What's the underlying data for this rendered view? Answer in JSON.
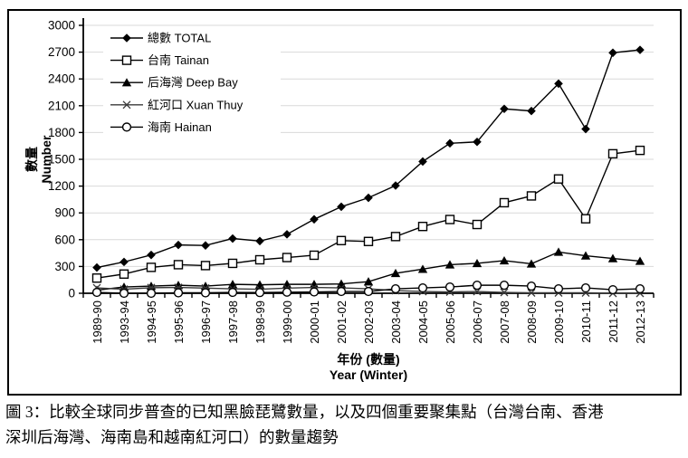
{
  "figure": {
    "caption_line1": "圖 3：比較全球同步普查的已知黑臉琵鷺數量，以及四個重要聚集點（台灣台南、香港",
    "caption_line2": "深圳后海灣、海南島和越南紅河口）的數量趨勢"
  },
  "chart_data": {
    "type": "line",
    "title": "",
    "xlabel_line1": "年份 (數量)",
    "xlabel_line2": "Year (Winter)",
    "ylabel_line1": "數量",
    "ylabel_line2": "Number",
    "ylim": [
      0,
      3000
    ],
    "ytick_step": 300,
    "grid": "horizontal-light-gray",
    "legend_position": "top-left-inside",
    "categories": [
      "1989-90",
      "1993-94",
      "1994-95",
      "1995-96",
      "1996-97",
      "1997-98",
      "1998-99",
      "1999-00",
      "2000-01",
      "2001-02",
      "2002-03",
      "2003-04",
      "2004-05",
      "2005-06",
      "2006-07",
      "2007-08",
      "2008-09",
      "2009-10",
      "2010-11",
      "2011-12",
      "2012-13"
    ],
    "series": [
      {
        "key": "total",
        "name": "總數 TOTAL",
        "marker": "diamond-filled",
        "color": "#000000",
        "values": [
          288,
          351,
          429,
          541,
          535,
          613,
          585,
          660,
          828,
          969,
          1069,
          1206,
          1475,
          1679,
          1695,
          2065,
          2041,
          2347,
          1839,
          2693,
          2725
        ]
      },
      {
        "key": "tainan",
        "name": "台南 Tainan",
        "marker": "square-open",
        "color": "#000000",
        "values": [
          170,
          215,
          290,
          320,
          310,
          335,
          375,
          400,
          426,
          590,
          580,
          635,
          748,
          826,
          770,
          1014,
          1090,
          1280,
          834,
          1562,
          1600
        ]
      },
      {
        "key": "deep-bay",
        "name": "后海灣 Deep Bay",
        "marker": "triangle-filled",
        "color": "#000000",
        "values": [
          35,
          70,
          80,
          90,
          80,
          100,
          95,
          100,
          100,
          105,
          130,
          224,
          270,
          320,
          335,
          365,
          330,
          462,
          420,
          390,
          360
        ]
      },
      {
        "key": "xuan-thuy",
        "name": "紅河口 Xuan Thuy",
        "marker": "x-cross",
        "color": "#3a3a3a",
        "values": [
          60,
          45,
          62,
          65,
          58,
          50,
          45,
          58,
          65,
          60,
          50,
          30,
          20,
          15,
          20,
          10,
          5,
          5,
          5,
          0,
          0
        ]
      },
      {
        "key": "hainan",
        "name": "海南 Hainan",
        "marker": "circle-open",
        "color": "#000000",
        "values": [
          10,
          0,
          0,
          5,
          5,
          10,
          8,
          12,
          15,
          20,
          20,
          50,
          60,
          70,
          90,
          90,
          80,
          50,
          60,
          40,
          50
        ]
      }
    ],
    "colors": {
      "gridline": "#d9d9d9",
      "axis": "#000000",
      "background": "#ffffff"
    }
  }
}
